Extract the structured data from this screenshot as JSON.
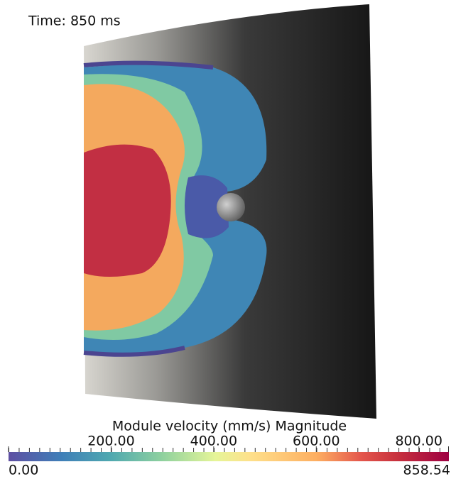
{
  "time_label": "Time: 850 ms",
  "colorbar": {
    "title": "Module velocity (mm/s) Magnitude",
    "range": [
      {
        "value": 0,
        "label": "0.00"
      },
      {
        "value": 858.54,
        "label": "858.54"
      }
    ],
    "ticks": [
      {
        "value": 200,
        "label": "200.00"
      },
      {
        "value": 400,
        "label": "400.00"
      },
      {
        "value": 600,
        "label": "600.00"
      },
      {
        "value": 800,
        "label": "800.00"
      }
    ]
  }
}
